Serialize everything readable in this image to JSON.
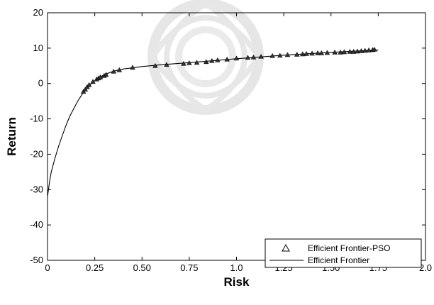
{
  "chart_data": {
    "type": "scatter",
    "xlabel": "Risk",
    "ylabel": "Return",
    "xlim": [
      0,
      2.0
    ],
    "ylim": [
      -50,
      20
    ],
    "xticks": [
      "0",
      "0.25",
      "0.50",
      "0.75",
      "1.0",
      "1.25",
      "1.50",
      "1.75",
      "2.0"
    ],
    "yticks": [
      "20",
      "10",
      "0",
      "-10",
      "-20",
      "-30",
      "-40",
      "-50"
    ],
    "legend_position": "bottom-right",
    "series": [
      {
        "name": "Efficient Frontier-PSO",
        "type": "scatter",
        "marker": "triangle",
        "color": "#000000",
        "x": [
          0.19,
          0.2,
          0.21,
          0.22,
          0.24,
          0.26,
          0.27,
          0.28,
          0.3,
          0.31,
          0.35,
          0.38,
          0.45,
          0.57,
          0.63,
          0.72,
          0.75,
          0.79,
          0.84,
          0.87,
          0.9,
          0.95,
          1.0,
          1.06,
          1.09,
          1.13,
          1.19,
          1.23,
          1.27,
          1.32,
          1.35,
          1.37,
          1.4,
          1.43,
          1.45,
          1.48,
          1.52,
          1.55,
          1.57,
          1.6,
          1.62,
          1.64,
          1.66,
          1.68,
          1.7,
          1.72,
          1.73
        ],
        "y": [
          -2.3,
          -1.7,
          -1.0,
          -0.4,
          0.5,
          1.2,
          1.5,
          1.8,
          2.2,
          2.5,
          3.4,
          3.8,
          4.5,
          5.0,
          5.3,
          5.6,
          5.8,
          5.9,
          6.1,
          6.4,
          6.6,
          6.8,
          7.1,
          7.3,
          7.4,
          7.6,
          7.8,
          7.9,
          8.1,
          8.2,
          8.3,
          8.4,
          8.5,
          8.6,
          8.6,
          8.7,
          8.8,
          8.8,
          8.9,
          9.0,
          9.0,
          9.1,
          9.2,
          9.3,
          9.4,
          9.5,
          9.6
        ]
      },
      {
        "name": "Efficient Frontier",
        "type": "line",
        "color": "#000000",
        "x": [
          0.0,
          0.01,
          0.02,
          0.04,
          0.06,
          0.08,
          0.1,
          0.12,
          0.14,
          0.16,
          0.18,
          0.2,
          0.22,
          0.25,
          0.3,
          0.35,
          0.4,
          0.5,
          0.6,
          0.75,
          1.0,
          1.25,
          1.5,
          1.75
        ],
        "y": [
          -32.0,
          -28.0,
          -25.0,
          -21.0,
          -17.5,
          -14.5,
          -11.5,
          -9.0,
          -7.0,
          -5.0,
          -3.3,
          -1.8,
          -0.6,
          0.8,
          2.5,
          3.5,
          4.1,
          4.8,
          5.3,
          5.9,
          7.0,
          8.0,
          8.8,
          9.5
        ]
      }
    ]
  }
}
